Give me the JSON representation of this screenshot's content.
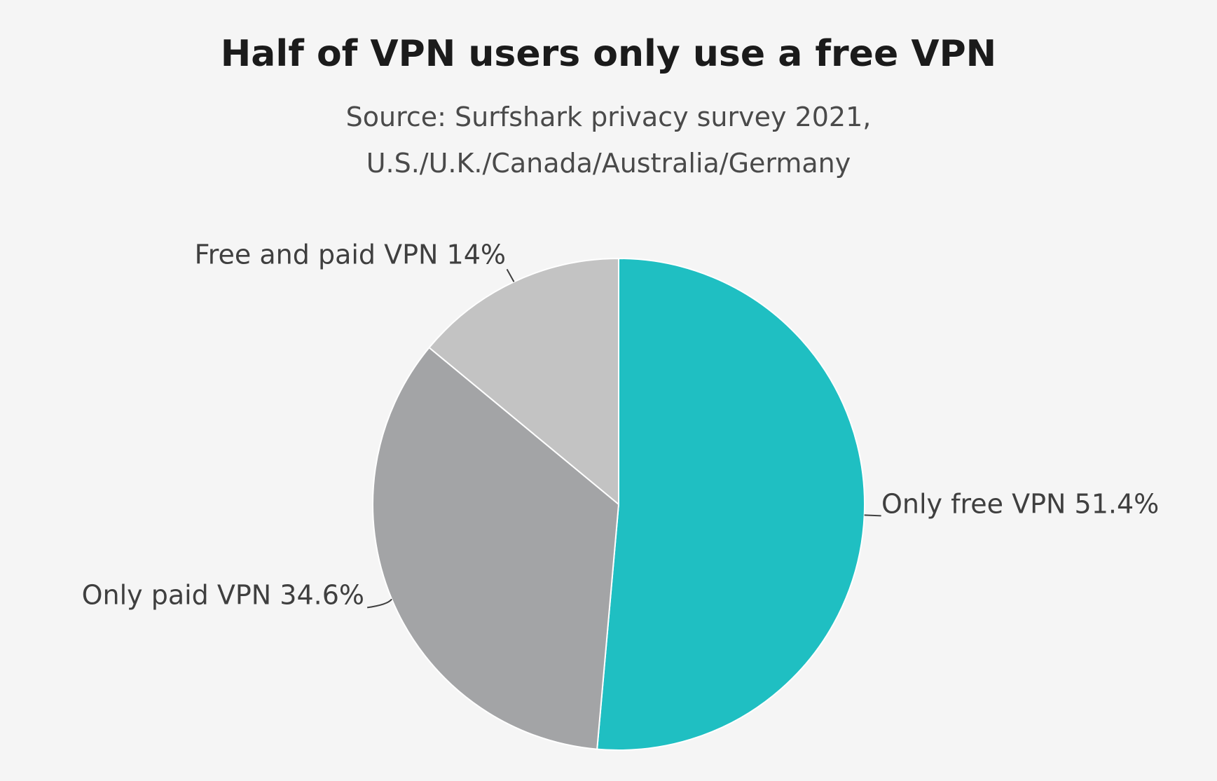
{
  "chart_data": {
    "type": "pie",
    "title": "Half of VPN users only use a free VPN",
    "subtitle": [
      "Source: Surfshark privacy survey 2021,",
      "U.S./U.K./Canada/Australia/Germany"
    ],
    "slices": [
      {
        "label": "Only free VPN 51.4%",
        "value": 51.4,
        "color": "#1fbfc2"
      },
      {
        "label": "Only paid VPN 34.6%",
        "value": 34.6,
        "color": "#a3a4a6"
      },
      {
        "label": "Free and paid VPN 14%",
        "value": 14,
        "color": "#c3c3c3"
      }
    ],
    "start": "12 o'clock",
    "direction": "clockwise",
    "slice_border_color": "#ffffff",
    "label_color": "#3f3f3f"
  }
}
